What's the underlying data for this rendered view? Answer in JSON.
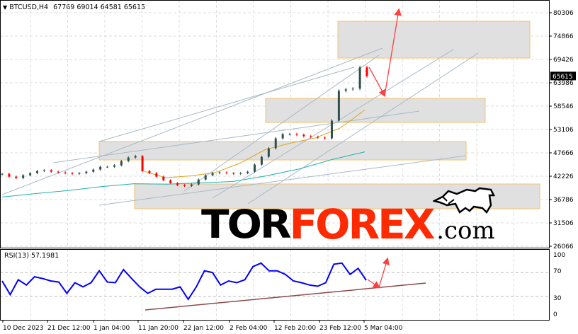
{
  "header": {
    "symbol": "BTCUSD,H4",
    "ohlc": "67769 69014 64581 65615",
    "menu_icon": "triangle-down-icon"
  },
  "logo": {
    "part1": "TOR",
    "part2": "FOREX",
    "part3": ".com",
    "icon": "bull-icon"
  },
  "colors": {
    "bull_candle": "#2f4f4f",
    "bear_candle": "#ff0000",
    "ma_fast": "#daa520",
    "ma_slow": "#20b2aa",
    "rsi": "#0000ff",
    "zone_border": "#f5c26b",
    "zone_fill": "#e0e0e0",
    "trendline": "#a7b9c6",
    "arrow": "#ff4040",
    "rsi_trendline": "#8b4a4a"
  },
  "chart_data": [
    {
      "type": "candlestick",
      "title": "BTCUSD,H4",
      "price_axis_ticks": [
        "80306",
        "74866",
        "69426",
        "63986",
        "58546",
        "53106",
        "47666",
        "42226",
        "36786",
        "31506",
        "26066"
      ],
      "ylim": [
        26066,
        80306
      ],
      "current_price": "65615",
      "time_ticks": [
        "10 Dec 2023",
        "21 Dec 12:00",
        "1 Jan 04:00",
        "11 Jan 20:00",
        "22 Jan 12:00",
        "2 Feb 04:00",
        "12 Feb 20:00",
        "23 Feb 12:00",
        "5 Mar 04:00"
      ],
      "grid": true,
      "close": [
        42885,
        42226,
        41897,
        42556,
        43050,
        43545,
        43709,
        43380,
        43215,
        43050,
        42885,
        43050,
        43380,
        43874,
        44533,
        44533,
        44863,
        45852,
        46676,
        47006,
        43545,
        43050,
        42226,
        41402,
        40742,
        40248,
        40083,
        40413,
        41567,
        42556,
        43050,
        43215,
        43050,
        42885,
        43050,
        43380,
        45029,
        46842,
        48820,
        51127,
        52116,
        52116,
        51952,
        51622,
        51457,
        51292,
        51127,
        55248,
        62172,
        62502,
        62667,
        67613,
        65615
      ],
      "ma_slow": [
        37500,
        38300,
        39000,
        39900,
        40600,
        40500,
        40800,
        41100,
        42400,
        44000,
        46200,
        48000
      ],
      "ma_fast_start_fraction": 0.38,
      "ma_fast": [
        43700,
        42000,
        42400,
        43200,
        45400,
        48500,
        50000,
        51200,
        53500,
        57700
      ]
    },
    {
      "type": "line",
      "title": "RSI(13) 57.1981",
      "ylim": [
        0,
        100
      ],
      "ticks": [
        "100",
        "70",
        "30",
        "0"
      ],
      "levels": [
        70,
        30
      ],
      "values": [
        56,
        33,
        58,
        49,
        63,
        60,
        56,
        54,
        35,
        53,
        46,
        53,
        73,
        54,
        53,
        75,
        60,
        46,
        35,
        42,
        42,
        42,
        46,
        25,
        46,
        73,
        70,
        49,
        56,
        53,
        58,
        80,
        86,
        73,
        73,
        67,
        56,
        53,
        49,
        47,
        53,
        84,
        86,
        67,
        77,
        57.2
      ]
    }
  ]
}
